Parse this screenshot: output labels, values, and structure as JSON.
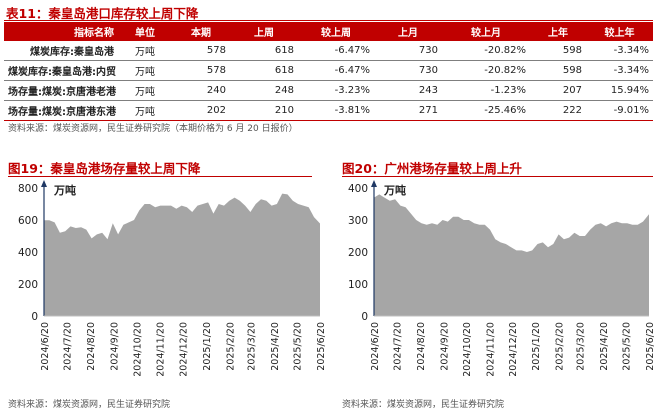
{
  "table": {
    "title": "表11：秦皇岛港口库存较上周下降",
    "headers": [
      "指标名称",
      "单位",
      "本期",
      "上周",
      "较上周",
      "上月",
      "较上月",
      "上年",
      "较上年"
    ],
    "rows": [
      [
        "煤炭库存:秦皇岛港",
        "万吨",
        "578",
        "618",
        "-6.47%",
        "730",
        "-20.82%",
        "598",
        "-3.34%"
      ],
      [
        "煤炭库存:秦皇岛港:内贸",
        "万吨",
        "578",
        "618",
        "-6.47%",
        "730",
        "-20.82%",
        "598",
        "-3.34%"
      ],
      [
        "场存量:煤炭:京唐港老港",
        "万吨",
        "240",
        "248",
        "-3.23%",
        "243",
        "-1.23%",
        "207",
        "15.94%"
      ],
      [
        "场存量:煤炭:京唐港东港",
        "万吨",
        "202",
        "210",
        "-3.81%",
        "271",
        "-25.46%",
        "222",
        "-9.01%"
      ]
    ],
    "source": "资料来源：煤炭资源网，民生证券研究院（本期价格为 6 月 20 日报价）"
  },
  "chart_data": [
    {
      "type": "area",
      "title": "图19：秦皇岛港场存量较上周下降",
      "ylabel": "万吨",
      "ylim": [
        0,
        800
      ],
      "yticks": [
        0,
        200,
        400,
        600,
        800
      ],
      "xlim": [
        "2024/6/20",
        "2025/6/20"
      ],
      "xticks": [
        "2024/6/20",
        "2024/7/20",
        "2024/8/20",
        "2024/9/20",
        "2024/10/20",
        "2024/11/20",
        "2024/12/20",
        "2025/1/20",
        "2025/2/20",
        "2025/3/20",
        "2025/4/20",
        "2025/5/20",
        "2025/6/20"
      ],
      "grid": false,
      "color": "#a6a6a6",
      "series": [
        {
          "name": "",
          "x": [
            "2024/6/20",
            "2024/6/27",
            "2024/7/4",
            "2024/7/11",
            "2024/7/18",
            "2024/7/25",
            "2024/8/1",
            "2024/8/8",
            "2024/8/15",
            "2024/8/22",
            "2024/8/29",
            "2024/9/5",
            "2024/9/12",
            "2024/9/19",
            "2024/9/26",
            "2024/10/3",
            "2024/10/10",
            "2024/10/17",
            "2024/10/24",
            "2024/10/31",
            "2024/11/7",
            "2024/11/14",
            "2024/11/21",
            "2024/11/28",
            "2024/12/5",
            "2024/12/12",
            "2024/12/19",
            "2024/12/26",
            "2025/1/2",
            "2025/1/9",
            "2025/1/16",
            "2025/1/23",
            "2025/1/30",
            "2025/2/6",
            "2025/2/13",
            "2025/2/20",
            "2025/2/27",
            "2025/3/6",
            "2025/3/13",
            "2025/3/20",
            "2025/3/27",
            "2025/4/3",
            "2025/4/10",
            "2025/4/17",
            "2025/4/24",
            "2025/5/1",
            "2025/5/8",
            "2025/5/15",
            "2025/5/22",
            "2025/5/29",
            "2025/6/5",
            "2025/6/12",
            "2025/6/20"
          ],
          "values": [
            598,
            598,
            585,
            520,
            530,
            560,
            550,
            555,
            540,
            485,
            510,
            520,
            480,
            580,
            510,
            570,
            585,
            600,
            660,
            700,
            700,
            680,
            690,
            690,
            690,
            670,
            690,
            680,
            650,
            690,
            700,
            710,
            640,
            700,
            690,
            720,
            740,
            720,
            690,
            650,
            700,
            730,
            720,
            690,
            700,
            765,
            760,
            720,
            700,
            690,
            680,
            618,
            578
          ]
        }
      ]
    },
    {
      "type": "area",
      "title": "图20：广州港场存量较上周上升",
      "ylabel": "万吨",
      "ylim": [
        0,
        400
      ],
      "yticks": [
        0,
        100,
        200,
        300,
        400
      ],
      "xlim": [
        "2024/6/20",
        "2025/6/20"
      ],
      "xticks": [
        "2024/6/20",
        "2024/7/20",
        "2024/8/20",
        "2024/9/20",
        "2024/10/20",
        "2024/11/20",
        "2024/12/20",
        "2025/1/20",
        "2025/2/20",
        "2025/3/20",
        "2025/4/20",
        "2025/5/20",
        "2025/6/20"
      ],
      "grid": false,
      "color": "#a6a6a6",
      "series": [
        {
          "name": "",
          "x": [
            "2024/6/20",
            "2024/6/27",
            "2024/7/4",
            "2024/7/11",
            "2024/7/18",
            "2024/7/25",
            "2024/8/1",
            "2024/8/8",
            "2024/8/15",
            "2024/8/22",
            "2024/8/29",
            "2024/9/5",
            "2024/9/12",
            "2024/9/19",
            "2024/9/26",
            "2024/10/3",
            "2024/10/10",
            "2024/10/17",
            "2024/10/24",
            "2024/10/31",
            "2024/11/7",
            "2024/11/14",
            "2024/11/21",
            "2024/11/28",
            "2024/12/5",
            "2024/12/12",
            "2024/12/19",
            "2024/12/26",
            "2025/1/2",
            "2025/1/9",
            "2025/1/16",
            "2025/1/23",
            "2025/1/30",
            "2025/2/6",
            "2025/2/13",
            "2025/2/20",
            "2025/2/27",
            "2025/3/6",
            "2025/3/13",
            "2025/3/20",
            "2025/3/27",
            "2025/4/3",
            "2025/4/10",
            "2025/4/17",
            "2025/4/24",
            "2025/5/1",
            "2025/5/8",
            "2025/5/15",
            "2025/5/22",
            "2025/5/29",
            "2025/6/5",
            "2025/6/12",
            "2025/6/20"
          ],
          "values": [
            370,
            380,
            370,
            360,
            365,
            345,
            340,
            320,
            300,
            290,
            285,
            290,
            285,
            300,
            295,
            310,
            310,
            300,
            300,
            290,
            285,
            285,
            270,
            240,
            230,
            225,
            215,
            205,
            205,
            200,
            205,
            225,
            230,
            215,
            225,
            255,
            240,
            245,
            260,
            250,
            250,
            270,
            285,
            290,
            280,
            290,
            295,
            290,
            290,
            285,
            285,
            295,
            318
          ]
        }
      ]
    }
  ],
  "charts_meta": [
    {
      "source": "资料来源：煤炭资源网，民生证券研究院"
    },
    {
      "source": "资料来源：煤炭资源网，民生证券研究院"
    }
  ]
}
